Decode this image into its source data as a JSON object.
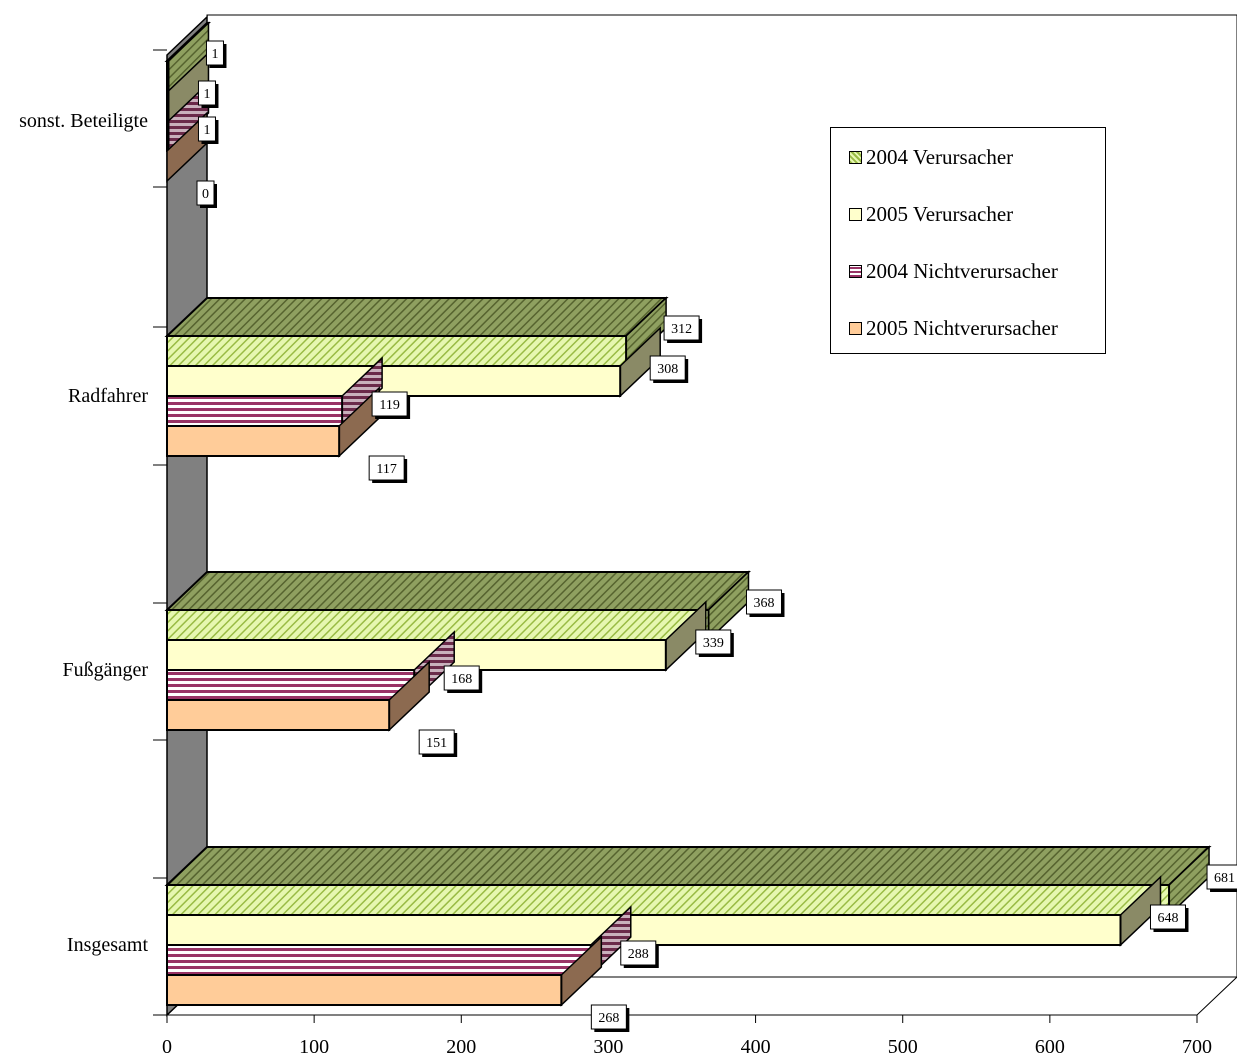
{
  "chart_data": {
    "type": "bar",
    "orientation": "horizontal",
    "three_d": true,
    "categories": [
      "Insgesamt",
      "Fußgänger",
      "Radfahrer",
      "sonst. Beteiligte"
    ],
    "series": [
      {
        "name": "2004 Verursacher",
        "values": [
          681,
          368,
          312,
          1
        ],
        "color": "#CCEE77",
        "pattern": "diagonal",
        "side_color": "#6E7A46"
      },
      {
        "name": "2005 Verursacher",
        "values": [
          648,
          339,
          308,
          1
        ],
        "color": "#FFFFCC",
        "pattern": "solid",
        "side_color": "#8A8A66"
      },
      {
        "name": "2004 Nichtverursacher",
        "values": [
          288,
          168,
          119,
          1
        ],
        "color": "#993366",
        "pattern": "horizontal-stripes",
        "side_color": "#7A4A60"
      },
      {
        "name": "2005 Nichtverursacher",
        "values": [
          268,
          151,
          117,
          0
        ],
        "color": "#FFCC99",
        "pattern": "solid",
        "side_color": "#8C6A50"
      }
    ],
    "xlim": [
      0,
      700
    ],
    "x_ticks": [
      "0",
      "100",
      "200",
      "300",
      "400",
      "500",
      "600",
      "700"
    ],
    "legend": "top-right",
    "grid": false,
    "colors": {
      "wall": "#808080",
      "axis": "#000000"
    }
  }
}
